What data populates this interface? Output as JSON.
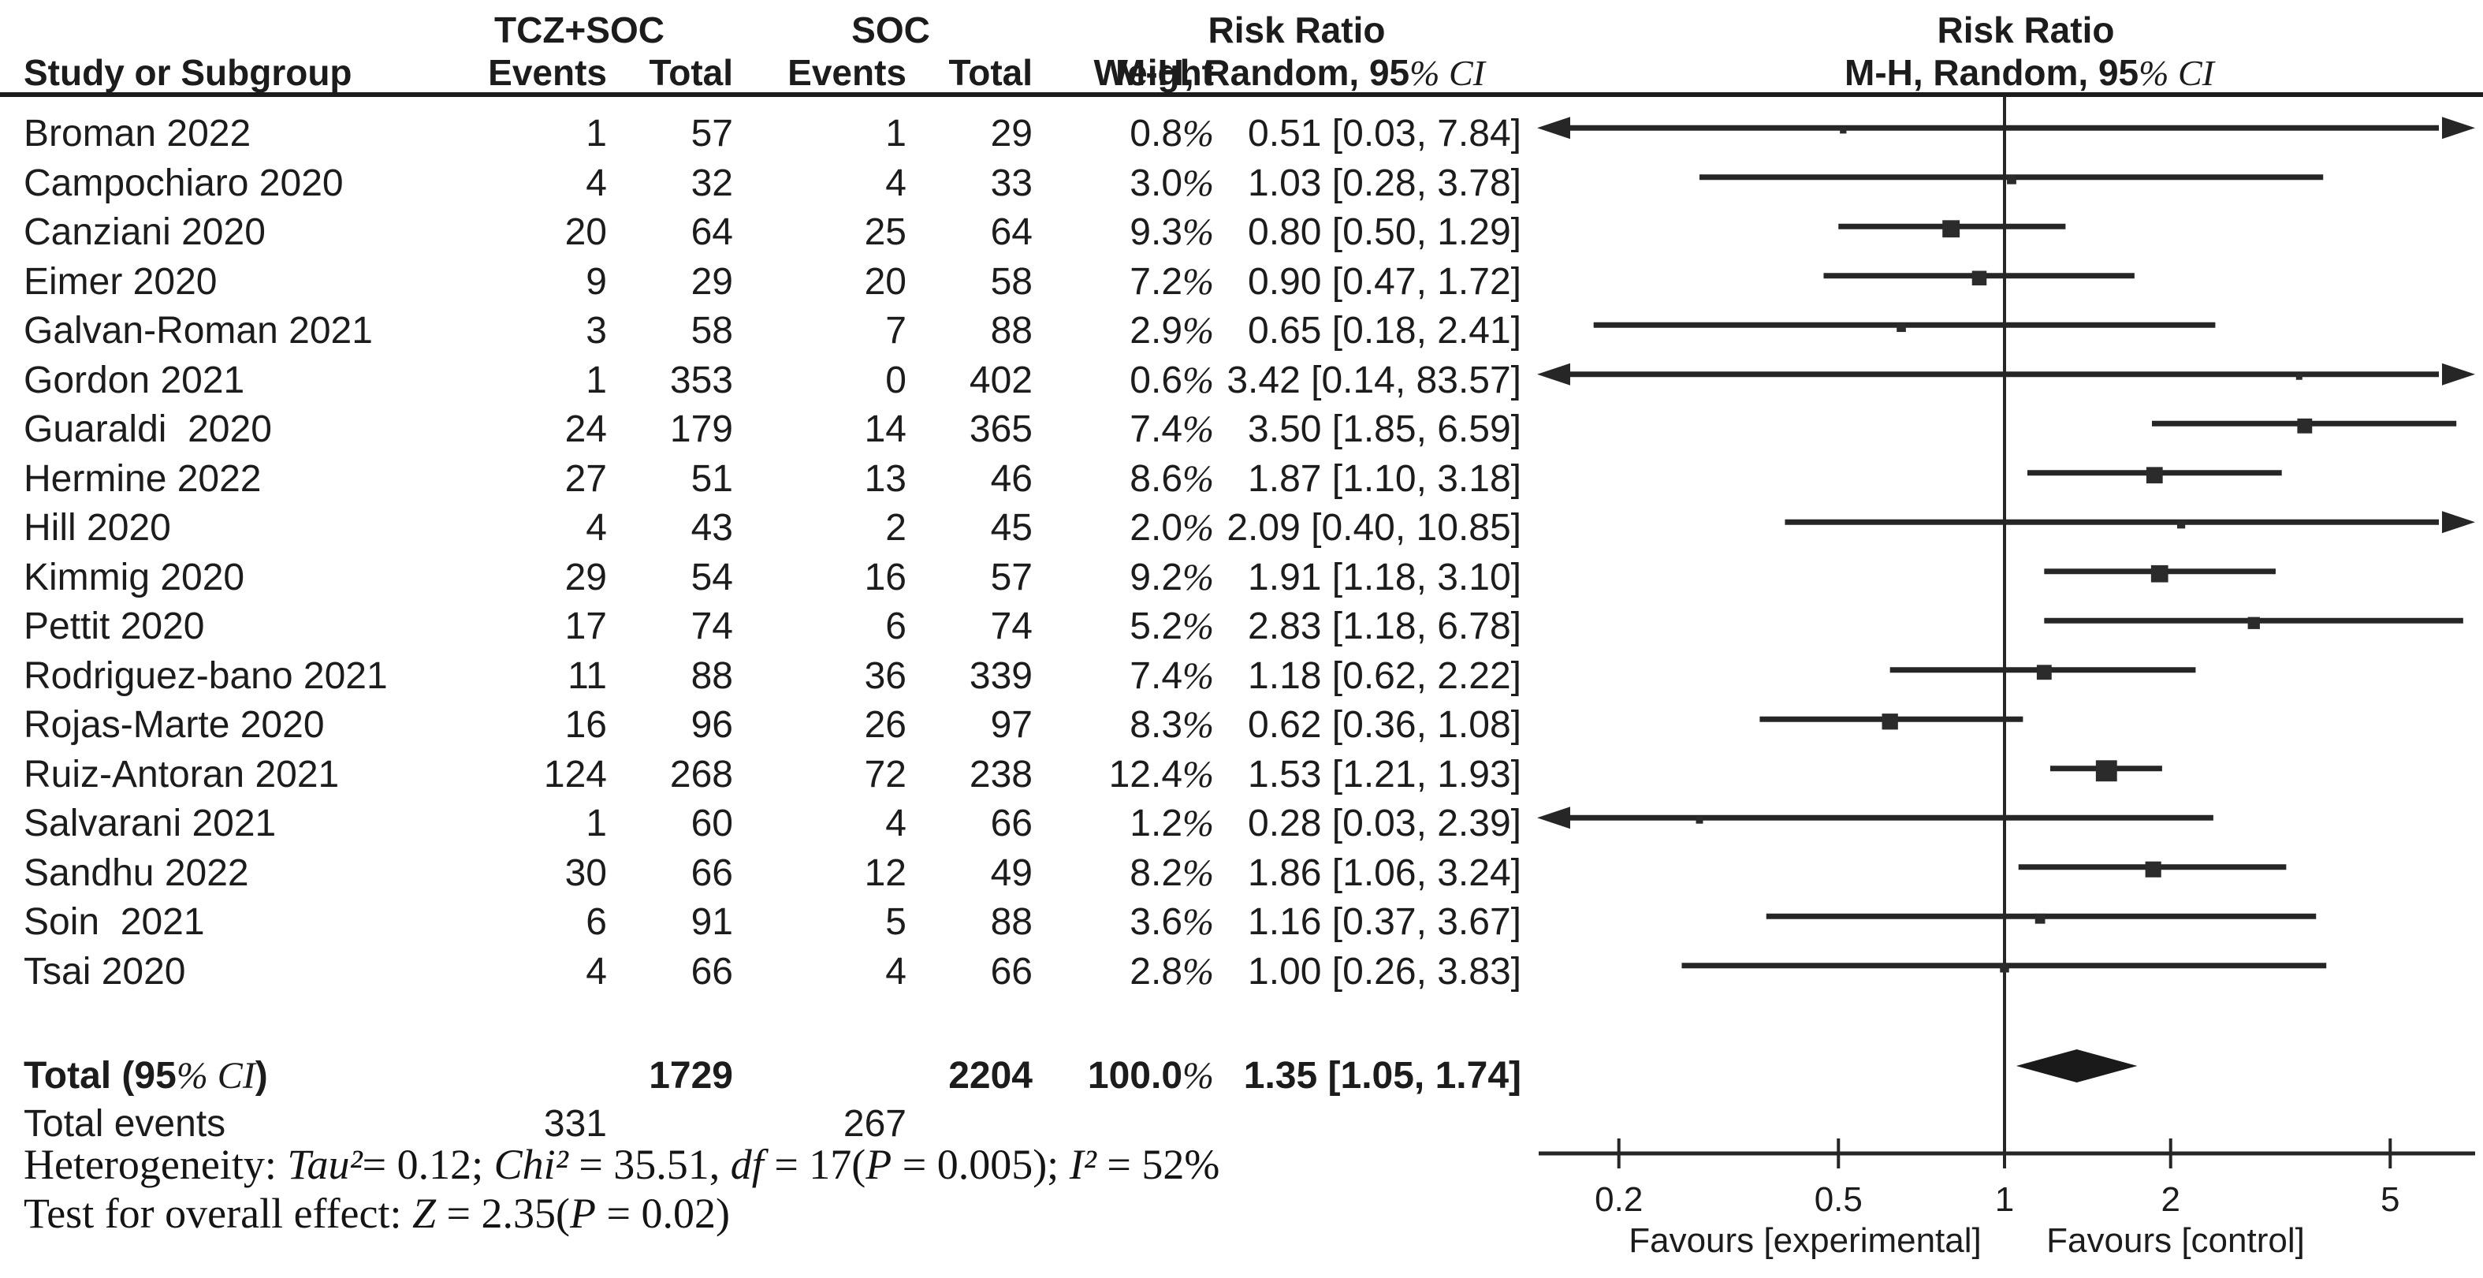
{
  "header": {
    "group1": "TCZ+SOC",
    "group2": "SOC",
    "risk_ratio_text": "Risk Ratio",
    "risk_ratio_plot": "Risk Ratio",
    "subtitle_text": "M-H, Random, 95% CI",
    "subtitle_plot": "M-H, Random, 95% CI",
    "col_study": "Study or Subgroup",
    "col_events1": "Events",
    "col_total1": "Total",
    "col_events2": "Events",
    "col_total2": "Total",
    "col_weight": "Weight"
  },
  "colors": {
    "ink": "#1c1c1c",
    "marker": "#2b2b2b",
    "line": "#262626"
  },
  "chart_data": {
    "type": "forest",
    "effect_measure": "Risk Ratio",
    "method": "M-H, Random, 95% CI",
    "x_scale": "log10",
    "axis_ticks": [
      0.2,
      0.5,
      1,
      2,
      5
    ],
    "tick_labels": [
      "0.2",
      "0.5",
      "1",
      "2",
      "5"
    ],
    "favours_left": "Favours [experimental]",
    "favours_right": "Favours [control]",
    "studies": [
      {
        "name": "Broman 2022",
        "tcz_events": "1",
        "tcz_total": "57",
        "soc_events": "1",
        "soc_total": "29",
        "weight": "0.8%",
        "ci_text": "0.51 [0.03, 7.84]",
        "rr": 0.51,
        "lo": 0.03,
        "hi": 7.84,
        "w": 0.8
      },
      {
        "name": "Campochiaro 2020",
        "tcz_events": "4",
        "tcz_total": "32",
        "soc_events": "4",
        "soc_total": "33",
        "weight": "3.0%",
        "ci_text": "1.03 [0.28, 3.78]",
        "rr": 1.03,
        "lo": 0.28,
        "hi": 3.78,
        "w": 3.0
      },
      {
        "name": "Canziani 2020",
        "tcz_events": "20",
        "tcz_total": "64",
        "soc_events": "25",
        "soc_total": "64",
        "weight": "9.3%",
        "ci_text": "0.80 [0.50, 1.29]",
        "rr": 0.8,
        "lo": 0.5,
        "hi": 1.29,
        "w": 9.3
      },
      {
        "name": "Eimer 2020",
        "tcz_events": "9",
        "tcz_total": "29",
        "soc_events": "20",
        "soc_total": "58",
        "weight": "7.2%",
        "ci_text": "0.90 [0.47, 1.72]",
        "rr": 0.9,
        "lo": 0.47,
        "hi": 1.72,
        "w": 7.2
      },
      {
        "name": "Galvan-Roman 2021",
        "tcz_events": "3",
        "tcz_total": "58",
        "soc_events": "7",
        "soc_total": "88",
        "weight": "2.9%",
        "ci_text": "0.65 [0.18, 2.41]",
        "rr": 0.65,
        "lo": 0.18,
        "hi": 2.41,
        "w": 2.9
      },
      {
        "name": "Gordon 2021",
        "tcz_events": "1",
        "tcz_total": "353",
        "soc_events": "0",
        "soc_total": "402",
        "weight": "0.6%",
        "ci_text": "3.42 [0.14, 83.57]",
        "rr": 3.42,
        "lo": 0.14,
        "hi": 83.57,
        "w": 0.6
      },
      {
        "name": "Guaraldi  2020",
        "tcz_events": "24",
        "tcz_total": "179",
        "soc_events": "14",
        "soc_total": "365",
        "weight": "7.4%",
        "ci_text": "3.50 [1.85, 6.59]",
        "rr": 3.5,
        "lo": 1.85,
        "hi": 6.59,
        "w": 7.4
      },
      {
        "name": "Hermine 2022",
        "tcz_events": "27",
        "tcz_total": "51",
        "soc_events": "13",
        "soc_total": "46",
        "weight": "8.6%",
        "ci_text": "1.87 [1.10, 3.18]",
        "rr": 1.87,
        "lo": 1.1,
        "hi": 3.18,
        "w": 8.6
      },
      {
        "name": "Hill 2020",
        "tcz_events": "4",
        "tcz_total": "43",
        "soc_events": "2",
        "soc_total": "45",
        "weight": "2.0%",
        "ci_text": "2.09 [0.40, 10.85]",
        "rr": 2.09,
        "lo": 0.4,
        "hi": 10.85,
        "w": 2.0
      },
      {
        "name": "Kimmig 2020",
        "tcz_events": "29",
        "tcz_total": "54",
        "soc_events": "16",
        "soc_total": "57",
        "weight": "9.2%",
        "ci_text": "1.91 [1.18, 3.10]",
        "rr": 1.91,
        "lo": 1.18,
        "hi": 3.1,
        "w": 9.2
      },
      {
        "name": "Pettit 2020",
        "tcz_events": "17",
        "tcz_total": "74",
        "soc_events": "6",
        "soc_total": "74",
        "weight": "5.2%",
        "ci_text": "2.83 [1.18, 6.78]",
        "rr": 2.83,
        "lo": 1.18,
        "hi": 6.78,
        "w": 5.2
      },
      {
        "name": "Rodriguez-bano 2021",
        "tcz_events": "11",
        "tcz_total": "88",
        "soc_events": "36",
        "soc_total": "339",
        "weight": "7.4%",
        "ci_text": "1.18 [0.62, 2.22]",
        "rr": 1.18,
        "lo": 0.62,
        "hi": 2.22,
        "w": 7.4
      },
      {
        "name": "Rojas-Marte 2020",
        "tcz_events": "16",
        "tcz_total": "96",
        "soc_events": "26",
        "soc_total": "97",
        "weight": "8.3%",
        "ci_text": "0.62 [0.36, 1.08]",
        "rr": 0.62,
        "lo": 0.36,
        "hi": 1.08,
        "w": 8.3
      },
      {
        "name": "Ruiz-Antoran 2021",
        "tcz_events": "124",
        "tcz_total": "268",
        "soc_events": "72",
        "soc_total": "238",
        "weight": "12.4%",
        "ci_text": "1.53 [1.21, 1.93]",
        "rr": 1.53,
        "lo": 1.21,
        "hi": 1.93,
        "w": 12.4
      },
      {
        "name": "Salvarani 2021",
        "tcz_events": "1",
        "tcz_total": "60",
        "soc_events": "4",
        "soc_total": "66",
        "weight": "1.2%",
        "ci_text": "0.28 [0.03, 2.39]",
        "rr": 0.28,
        "lo": 0.03,
        "hi": 2.39,
        "w": 1.2
      },
      {
        "name": "Sandhu 2022",
        "tcz_events": "30",
        "tcz_total": "66",
        "soc_events": "12",
        "soc_total": "49",
        "weight": "8.2%",
        "ci_text": "1.86 [1.06, 3.24]",
        "rr": 1.86,
        "lo": 1.06,
        "hi": 3.24,
        "w": 8.2
      },
      {
        "name": "Soin  2021",
        "tcz_events": "6",
        "tcz_total": "91",
        "soc_events": "5",
        "soc_total": "88",
        "weight": "3.6%",
        "ci_text": "1.16 [0.37, 3.67]",
        "rr": 1.16,
        "lo": 0.37,
        "hi": 3.67,
        "w": 3.6
      },
      {
        "name": "Tsai 2020",
        "tcz_events": "4",
        "tcz_total": "66",
        "soc_events": "4",
        "soc_total": "66",
        "weight": "2.8%",
        "ci_text": "1.00 [0.26, 3.83]",
        "rr": 1.0,
        "lo": 0.26,
        "hi": 3.83,
        "w": 2.8
      }
    ],
    "total": {
      "label": "Total (95% CI)",
      "tcz_total": "1729",
      "soc_total": "2204",
      "weight": "100.0%",
      "ci_text": "1.35 [1.05, 1.74]",
      "rr": 1.35,
      "lo": 1.05,
      "hi": 1.74
    },
    "total_events": {
      "label": "Total events",
      "tcz": "331",
      "soc": "267"
    },
    "heterogeneity_segments": [
      {
        "t": "Heterogeneity: ",
        "i": false
      },
      {
        "t": "Tau²",
        "i": true
      },
      {
        "t": "= 0.12; ",
        "i": false
      },
      {
        "t": "Chi²",
        "i": true
      },
      {
        "t": " = 35.51, ",
        "i": false
      },
      {
        "t": "df",
        "i": true
      },
      {
        "t": " = 17(",
        "i": false
      },
      {
        "t": "P",
        "i": true
      },
      {
        "t": " = 0.005); ",
        "i": false
      },
      {
        "t": "I²",
        "i": true
      },
      {
        "t": " = 52%",
        "i": false
      }
    ],
    "overall_effect_segments": [
      {
        "t": "Test for overall effect: ",
        "i": false
      },
      {
        "t": "Z",
        "i": true
      },
      {
        "t": " = 2.35(",
        "i": false
      },
      {
        "t": "P",
        "i": true
      },
      {
        "t": " = 0.02)",
        "i": false
      }
    ]
  }
}
